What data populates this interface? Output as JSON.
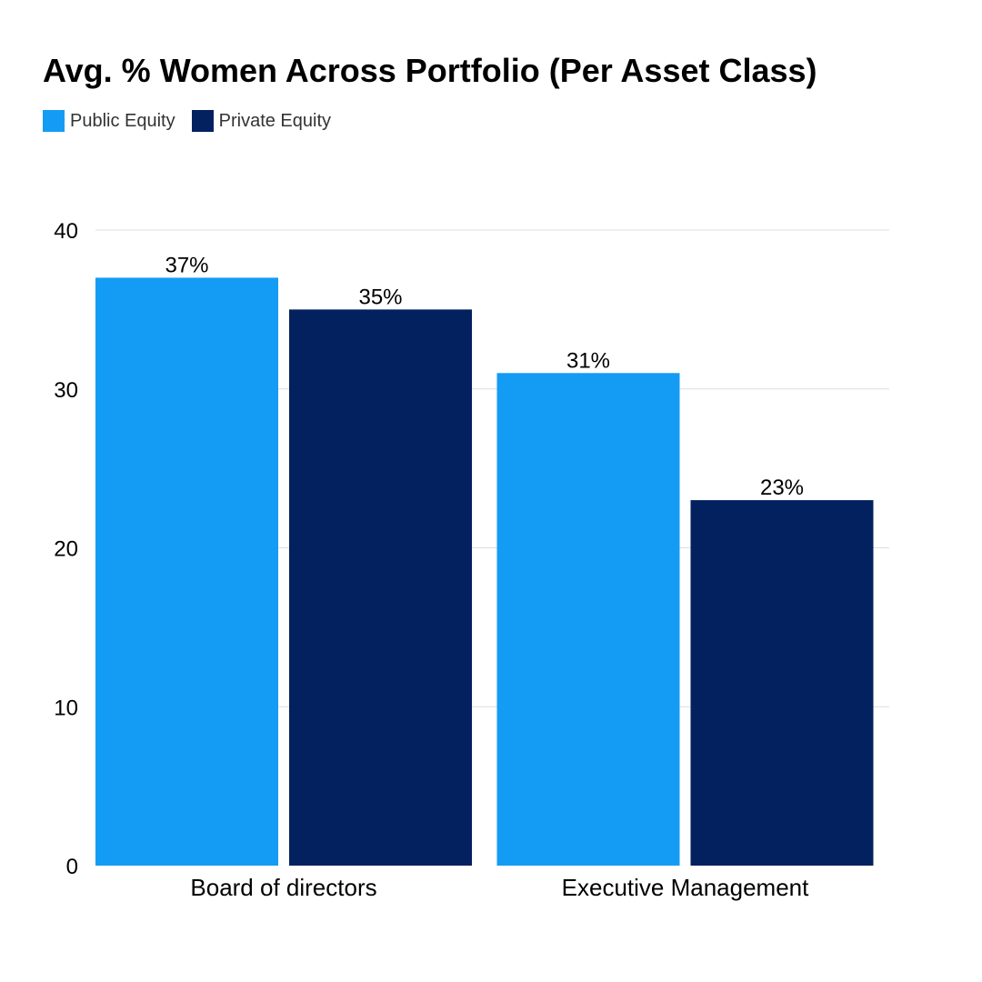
{
  "chart_data": {
    "type": "bar",
    "title": "Avg. % Women Across Portfolio (Per Asset Class)",
    "categories": [
      "Board of directors",
      "Executive Management"
    ],
    "series": [
      {
        "name": "Public Equity",
        "color": "#149cf4",
        "values": [
          37,
          31
        ],
        "labels": [
          "37%",
          "31%"
        ]
      },
      {
        "name": "Private Equity",
        "color": "#02215e",
        "values": [
          35,
          23
        ],
        "labels": [
          "35%",
          "23%"
        ]
      }
    ],
    "xlabel": "",
    "ylabel": "",
    "ylim": [
      0,
      40
    ],
    "yticks": [
      0,
      10,
      20,
      30,
      40
    ],
    "ytick_labels": [
      "0",
      "10",
      "20",
      "30",
      "40"
    ],
    "grid": true,
    "legend_position": "top-left"
  }
}
